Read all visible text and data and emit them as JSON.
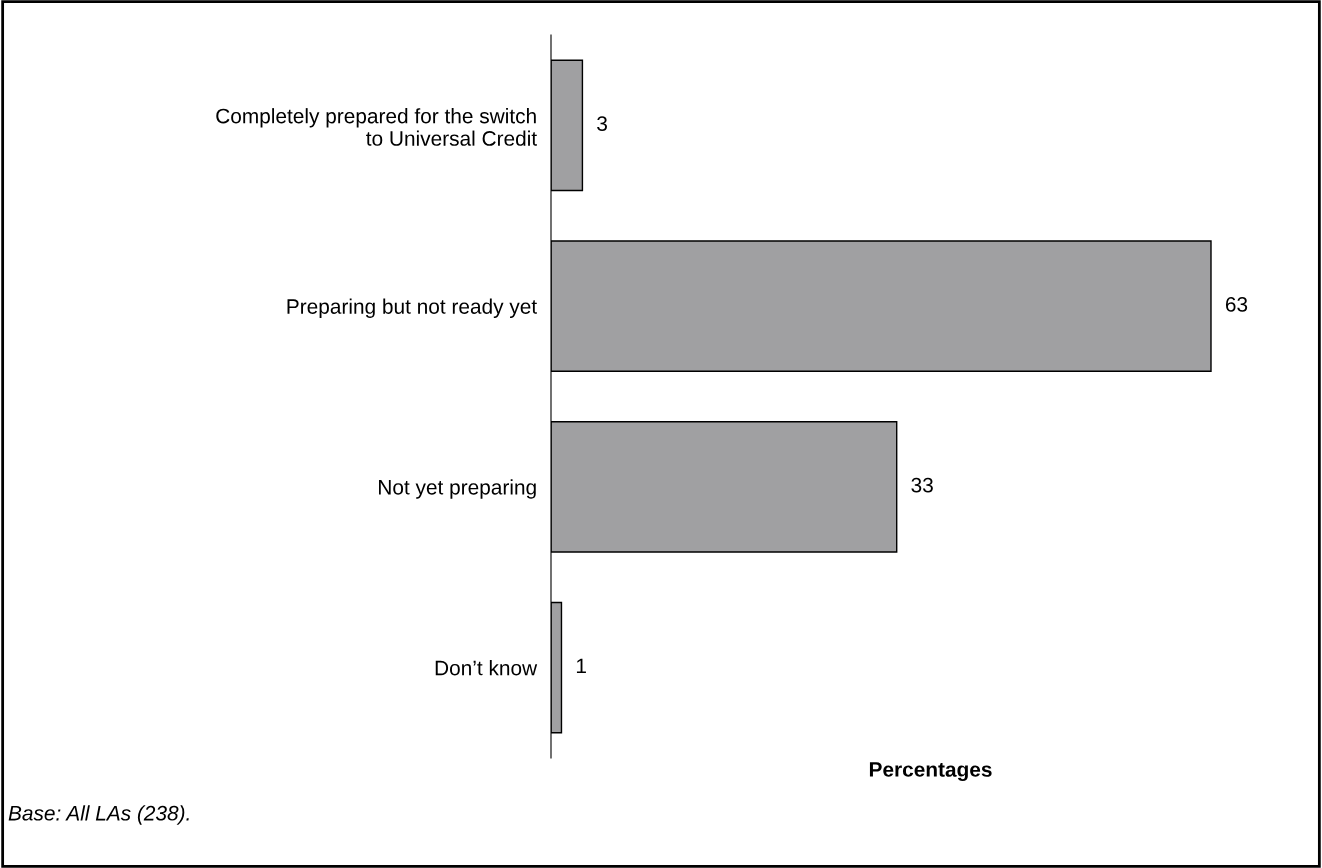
{
  "chart_data": {
    "type": "bar",
    "orientation": "horizontal",
    "xlabel": "Percentages",
    "categories": [
      "Completely prepared for the switch\nto Universal Credit",
      "Preparing but not ready yet",
      "Not yet preparing",
      "Don’t know"
    ],
    "values": [
      3,
      63,
      33,
      1
    ],
    "color": "#a0a0a2",
    "data_labels": true,
    "tick_labels": "y",
    "annotations": [
      "Base: All LAs (238)."
    ]
  }
}
